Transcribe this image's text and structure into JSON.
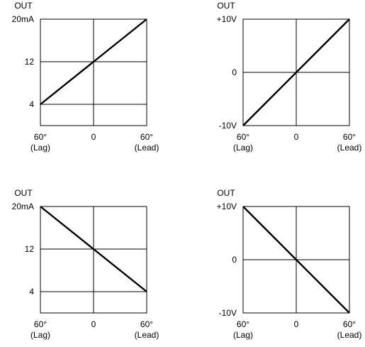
{
  "chart_data": [
    {
      "type": "line",
      "y_title": "OUT",
      "x": [
        -60,
        60
      ],
      "y": [
        4,
        20
      ],
      "xlim": [
        -60,
        60
      ],
      "ylim": [
        0,
        20
      ],
      "x_ticks": [
        {
          "v": -60,
          "label": "60°",
          "sub": "(Lag)"
        },
        {
          "v": 0,
          "label": "0",
          "sub": ""
        },
        {
          "v": 60,
          "label": "60°",
          "sub": "(Lead)"
        }
      ],
      "y_ticks": [
        {
          "v": 4,
          "label": "4"
        },
        {
          "v": 12,
          "label": "12"
        },
        {
          "v": 20,
          "label": "20mA"
        }
      ],
      "grid": true
    },
    {
      "type": "line",
      "y_title": "OUT",
      "x": [
        -60,
        60
      ],
      "y": [
        -10,
        10
      ],
      "xlim": [
        -60,
        60
      ],
      "ylim": [
        -10,
        10
      ],
      "x_ticks": [
        {
          "v": -60,
          "label": "60°",
          "sub": "(Lag)"
        },
        {
          "v": 0,
          "label": "0",
          "sub": ""
        },
        {
          "v": 60,
          "label": "60°",
          "sub": "(Lead)"
        }
      ],
      "y_ticks": [
        {
          "v": -10,
          "label": "-10V"
        },
        {
          "v": 0,
          "label": "0"
        },
        {
          "v": 10,
          "label": "+10V"
        }
      ],
      "grid": true
    },
    {
      "type": "line",
      "y_title": "OUT",
      "x": [
        -60,
        60
      ],
      "y": [
        20,
        4
      ],
      "xlim": [
        -60,
        60
      ],
      "ylim": [
        0,
        20
      ],
      "x_ticks": [
        {
          "v": -60,
          "label": "60°",
          "sub": "(Lag)"
        },
        {
          "v": 0,
          "label": "0",
          "sub": ""
        },
        {
          "v": 60,
          "label": "60°",
          "sub": "(Lead)"
        }
      ],
      "y_ticks": [
        {
          "v": 4,
          "label": "4"
        },
        {
          "v": 12,
          "label": "12"
        },
        {
          "v": 20,
          "label": "20mA"
        }
      ],
      "grid": true
    },
    {
      "type": "line",
      "y_title": "OUT",
      "x": [
        -60,
        60
      ],
      "y": [
        10,
        -10
      ],
      "xlim": [
        -60,
        60
      ],
      "ylim": [
        -10,
        10
      ],
      "x_ticks": [
        {
          "v": -60,
          "label": "60°",
          "sub": "(Lag)"
        },
        {
          "v": 0,
          "label": "0",
          "sub": ""
        },
        {
          "v": 60,
          "label": "60°",
          "sub": "(Lead)"
        }
      ],
      "y_ticks": [
        {
          "v": -10,
          "label": "-10V"
        },
        {
          "v": 0,
          "label": "0"
        },
        {
          "v": 10,
          "label": "+10V"
        }
      ],
      "grid": true
    }
  ]
}
